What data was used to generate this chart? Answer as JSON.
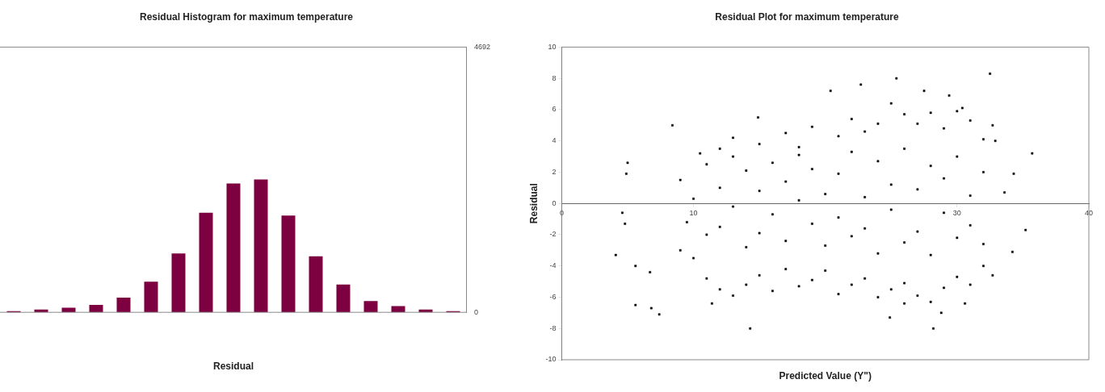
{
  "chart_data": [
    {
      "type": "bar",
      "title": "Residual Histogram for maximum temperature",
      "xlabel": "Residual",
      "categories": [
        null,
        null,
        null,
        null,
        null,
        null,
        null,
        null,
        null,
        null,
        null,
        null,
        null,
        null,
        null,
        null,
        null
      ],
      "values": [
        20,
        50,
        80,
        130,
        260,
        540,
        1040,
        1760,
        2280,
        2350,
        1710,
        990,
        490,
        200,
        110,
        50,
        20
      ],
      "color": "#7d0040",
      "ylim": [
        0,
        4692
      ],
      "yticks": [
        0,
        4692
      ],
      "grid": false,
      "legend": false
    },
    {
      "type": "scatter",
      "title": "Residual Plot for maximum temperature",
      "xlabel": "Predicted Value (Y\")",
      "ylabel": "Residual",
      "series": [
        {
          "color": "#000000",
          "x": [
            4.1,
            4.6,
            4.8,
            4.9,
            5.0,
            5.6,
            6.8,
            7.4,
            6.7,
            5.6,
            8.4,
            14.3,
            14.9,
            20.4,
            22.7,
            25.4,
            27.5,
            29.4,
            30.4,
            32.5,
            35.7,
            35.2,
            34.2,
            34.3,
            33.6,
            28.2,
            24.9,
            28.8,
            30.6,
            26.0,
            11.4,
            32.7,
            32.9,
            32.7,
            10.5,
            12,
            13,
            15,
            17,
            18,
            19,
            21,
            22,
            23,
            24,
            25,
            26,
            27,
            28,
            29,
            30,
            31,
            32,
            9,
            10,
            11,
            12,
            13,
            14,
            15,
            16,
            17,
            18,
            19,
            20,
            21,
            22,
            23,
            24,
            25,
            26,
            27,
            28,
            29,
            30,
            31,
            32,
            9,
            9.5,
            10,
            11,
            11,
            12,
            12,
            13,
            13,
            14,
            14,
            15,
            15,
            16,
            16,
            17,
            17,
            18,
            18,
            19,
            19,
            20,
            20,
            21,
            21,
            22,
            22,
            23,
            23,
            24,
            24,
            25,
            25,
            26,
            26,
            27,
            27,
            28,
            28,
            29,
            29,
            30,
            30,
            31,
            31,
            32,
            32
          ],
          "values": [
            -3.3,
            -0.6,
            -1.3,
            1.9,
            2.6,
            -6.5,
            -6.7,
            -7.1,
            -4.4,
            -4.0,
            5.0,
            -8.0,
            5.5,
            7.2,
            7.6,
            8.0,
            7.2,
            6.9,
            6.1,
            8.3,
            3.2,
            -1.7,
            -3.1,
            1.9,
            0.7,
            -8.0,
            -7.3,
            -7.0,
            -6.4,
            -6.4,
            -6.4,
            -4.6,
            4.0,
            5.0,
            3.2,
            3.5,
            4.2,
            3.8,
            4.5,
            3.6,
            4.9,
            4.3,
            5.4,
            4.6,
            5.1,
            6.4,
            5.7,
            5.1,
            5.8,
            4.8,
            5.9,
            5.3,
            4.1,
            -3.0,
            -3.5,
            -4.8,
            -5.5,
            -5.9,
            -5.2,
            -4.6,
            -5.6,
            -4.2,
            -5.3,
            -4.9,
            -4.3,
            -5.8,
            -5.2,
            -4.8,
            -6.0,
            -5.5,
            -5.1,
            -5.9,
            -6.3,
            -5.4,
            -4.7,
            -5.2,
            -4.0,
            1.5,
            -1.2,
            0.3,
            2.5,
            -2,
            1,
            -1.5,
            3,
            -0.2,
            2.1,
            -2.8,
            0.8,
            -1.9,
            2.6,
            -0.7,
            1.4,
            -2.4,
            3.1,
            0.2,
            -1.3,
            2.2,
            0.6,
            -2.7,
            1.9,
            -0.9,
            3.3,
            -2.1,
            0.4,
            -1.6,
            2.7,
            -3.2,
            1.2,
            -0.4,
            3.5,
            -2.5,
            0.9,
            -1.8,
            2.4,
            -3.3,
            1.6,
            -0.6,
            3.0,
            -2.2,
            0.5,
            -1.4,
            2.0,
            -2.6
          ]
        }
      ],
      "xlim": [
        0,
        40
      ],
      "xticks": [
        0,
        10,
        30,
        40
      ],
      "ylim": [
        -10,
        10
      ],
      "yticks": [
        -10,
        -8,
        -6,
        -4,
        -2,
        0,
        2,
        4,
        6,
        8,
        10
      ],
      "marker": "square",
      "grid": false,
      "legend": false
    }
  ]
}
